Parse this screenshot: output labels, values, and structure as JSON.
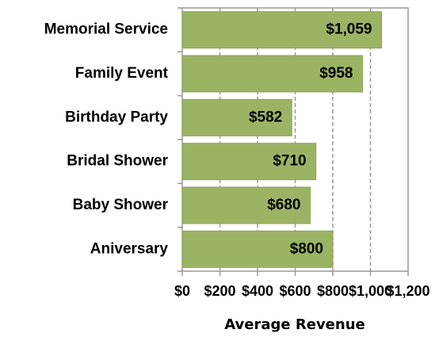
{
  "chart_data": {
    "type": "bar",
    "orientation": "horizontal",
    "xlabel": "Average Revenue",
    "categories": [
      "Memorial Service",
      "Family Event",
      "Birthday Party",
      "Bridal Shower",
      "Baby Shower",
      "Aniversary"
    ],
    "values": [
      1059,
      958,
      582,
      710,
      680,
      800
    ],
    "value_labels": [
      "$1,059",
      "$958",
      "$582",
      "$710",
      "$680",
      "$800"
    ],
    "color": "#9bb464",
    "xlim": [
      0,
      1200
    ],
    "xticks": [
      {
        "value": 0,
        "label": "$0"
      },
      {
        "value": 200,
        "label": "$200"
      },
      {
        "value": 400,
        "label": "$400"
      },
      {
        "value": 600,
        "label": "$600"
      },
      {
        "value": 800,
        "label": "$800"
      },
      {
        "value": 1000,
        "label": "$1,000"
      },
      {
        "value": 1200,
        "label": "$1,200"
      }
    ],
    "grid": true
  }
}
